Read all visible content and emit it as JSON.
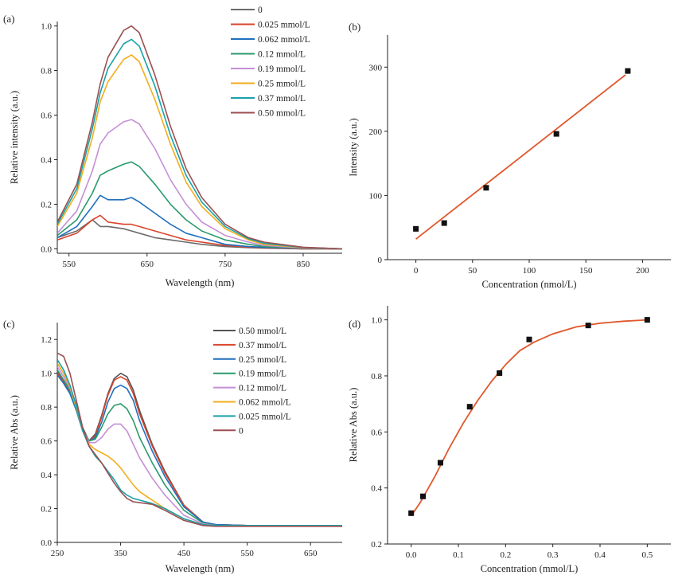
{
  "chart_data": [
    {
      "panel": "(a)",
      "type": "line",
      "title": "",
      "xlabel": "Wavelength (nm)",
      "ylabel": "Relative intensity (a.u.)",
      "xlim": [
        535,
        900
      ],
      "ylim": [
        -0.02,
        1.02
      ],
      "xticks": [
        550,
        650,
        750,
        850
      ],
      "yticks": [
        0.0,
        0.2,
        0.4,
        0.6,
        0.8,
        1.0
      ],
      "ytick_labels": [
        "0.0",
        "0.2",
        "0.4",
        "0.6",
        "0.8",
        "1.0"
      ],
      "legend_position": "top-right",
      "x": [
        535,
        560,
        580,
        590,
        600,
        620,
        630,
        640,
        660,
        680,
        700,
        720,
        750,
        780,
        800,
        850,
        900
      ],
      "series": [
        {
          "name": "0",
          "color": "#6b6b6b",
          "values": [
            0.05,
            0.08,
            0.13,
            0.1,
            0.1,
            0.09,
            0.08,
            0.07,
            0.05,
            0.04,
            0.03,
            0.02,
            0.01,
            0.005,
            0.003,
            0.0,
            0.0
          ]
        },
        {
          "name": "0.025 mmol/L",
          "color": "#d9452b",
          "values": [
            0.04,
            0.07,
            0.13,
            0.15,
            0.12,
            0.11,
            0.11,
            0.1,
            0.08,
            0.06,
            0.04,
            0.03,
            0.015,
            0.008,
            0.005,
            0.0,
            0.0
          ]
        },
        {
          "name": "0.062 mmol/L",
          "color": "#1f6fbf",
          "values": [
            0.05,
            0.1,
            0.19,
            0.24,
            0.22,
            0.22,
            0.23,
            0.21,
            0.16,
            0.11,
            0.07,
            0.05,
            0.02,
            0.01,
            0.007,
            0.002,
            0.0
          ]
        },
        {
          "name": "0.12 mmol/L",
          "color": "#2a9a6c",
          "values": [
            0.06,
            0.13,
            0.25,
            0.33,
            0.35,
            0.38,
            0.39,
            0.37,
            0.29,
            0.2,
            0.13,
            0.08,
            0.04,
            0.02,
            0.01,
            0.003,
            0.0
          ]
        },
        {
          "name": "0.19 mmol/L",
          "color": "#c58fd6",
          "values": [
            0.07,
            0.17,
            0.35,
            0.47,
            0.52,
            0.57,
            0.58,
            0.56,
            0.45,
            0.31,
            0.2,
            0.12,
            0.06,
            0.03,
            0.015,
            0.004,
            0.0
          ]
        },
        {
          "name": "0.25 mmol/L",
          "color": "#f2ad1b",
          "values": [
            0.1,
            0.25,
            0.5,
            0.66,
            0.75,
            0.85,
            0.87,
            0.84,
            0.67,
            0.47,
            0.3,
            0.19,
            0.09,
            0.04,
            0.02,
            0.005,
            0.0
          ]
        },
        {
          "name": "0.37 mmol/L",
          "color": "#19a2a8",
          "values": [
            0.11,
            0.27,
            0.54,
            0.7,
            0.81,
            0.92,
            0.94,
            0.91,
            0.73,
            0.51,
            0.33,
            0.21,
            0.1,
            0.045,
            0.025,
            0.006,
            0.0
          ]
        },
        {
          "name": "0.50 mmol/L",
          "color": "#9b4f52",
          "values": [
            0.12,
            0.29,
            0.57,
            0.74,
            0.86,
            0.98,
            1.0,
            0.97,
            0.78,
            0.55,
            0.36,
            0.23,
            0.11,
            0.05,
            0.03,
            0.007,
            0.0
          ]
        }
      ]
    },
    {
      "panel": "(b)",
      "type": "scatter",
      "title": "",
      "xlabel": "Concentration (nmol/L)",
      "ylabel": "Intensity (a.u.)",
      "xlim": [
        -25,
        225
      ],
      "ylim": [
        0,
        350
      ],
      "xticks": [
        0,
        50,
        100,
        150,
        200
      ],
      "yticks": [
        0,
        100,
        200,
        300
      ],
      "points": [
        {
          "x": 0,
          "y": 48
        },
        {
          "x": 25,
          "y": 57
        },
        {
          "x": 62,
          "y": 112
        },
        {
          "x": 124,
          "y": 196
        },
        {
          "x": 187,
          "y": 294
        }
      ],
      "fit": {
        "kind": "linear",
        "x": [
          0,
          185
        ],
        "y": [
          32,
          288
        ],
        "color": "#e0572b"
      }
    },
    {
      "panel": "(c)",
      "type": "line",
      "title": "",
      "xlabel": "Wavelength (nm)",
      "ylabel": "Relative Abs (a.u.)",
      "xlim": [
        250,
        700
      ],
      "ylim": [
        0.0,
        1.3
      ],
      "xticks": [
        250,
        350,
        450,
        550,
        650
      ],
      "yticks": [
        0.0,
        0.2,
        0.4,
        0.6,
        0.8,
        1.0,
        1.2
      ],
      "ytick_labels": [
        "0.0",
        "0.2",
        "0.4",
        "0.6",
        "0.8",
        "1.0",
        "1.2"
      ],
      "legend_position": "top-right",
      "x": [
        250,
        260,
        270,
        280,
        290,
        300,
        310,
        320,
        330,
        340,
        350,
        360,
        370,
        380,
        400,
        420,
        450,
        480,
        500,
        550,
        600,
        700
      ],
      "series": [
        {
          "name": "0.50 mmol/L",
          "color": "#555555",
          "values": [
            1.01,
            0.96,
            0.9,
            0.8,
            0.68,
            0.6,
            0.64,
            0.75,
            0.88,
            0.97,
            1.0,
            0.98,
            0.9,
            0.78,
            0.58,
            0.42,
            0.22,
            0.12,
            0.105,
            0.1,
            0.1,
            0.1
          ]
        },
        {
          "name": "0.37 mmol/L",
          "color": "#d9452b",
          "values": [
            1.0,
            0.95,
            0.89,
            0.79,
            0.67,
            0.6,
            0.63,
            0.74,
            0.87,
            0.96,
            0.98,
            0.96,
            0.88,
            0.76,
            0.57,
            0.41,
            0.22,
            0.12,
            0.105,
            0.1,
            0.1,
            0.1
          ]
        },
        {
          "name": "0.25 mmol/L",
          "color": "#1f6fbf",
          "values": [
            0.99,
            0.94,
            0.88,
            0.78,
            0.66,
            0.6,
            0.62,
            0.71,
            0.83,
            0.91,
            0.93,
            0.91,
            0.84,
            0.72,
            0.54,
            0.39,
            0.21,
            0.12,
            0.105,
            0.1,
            0.1,
            0.1
          ]
        },
        {
          "name": "0.19 mmol/L",
          "color": "#2a9a6c",
          "values": [
            1.02,
            0.96,
            0.9,
            0.79,
            0.67,
            0.6,
            0.61,
            0.68,
            0.76,
            0.81,
            0.82,
            0.79,
            0.72,
            0.62,
            0.47,
            0.34,
            0.19,
            0.115,
            0.1,
            0.1,
            0.1,
            0.1
          ]
        },
        {
          "name": "0.12 mmol/L",
          "color": "#c58fd6",
          "values": [
            1.04,
            0.98,
            0.91,
            0.8,
            0.67,
            0.59,
            0.59,
            0.62,
            0.67,
            0.7,
            0.7,
            0.66,
            0.58,
            0.5,
            0.38,
            0.28,
            0.16,
            0.11,
            0.1,
            0.1,
            0.1,
            0.1
          ]
        },
        {
          "name": "0.062 mmol/L",
          "color": "#f2ad1b",
          "values": [
            1.06,
            1.0,
            0.92,
            0.8,
            0.66,
            0.58,
            0.55,
            0.53,
            0.51,
            0.48,
            0.44,
            0.39,
            0.34,
            0.3,
            0.25,
            0.2,
            0.14,
            0.105,
            0.1,
            0.1,
            0.1,
            0.1
          ]
        },
        {
          "name": "0.025 mmol/L",
          "color": "#19a2a8",
          "values": [
            1.08,
            1.02,
            0.93,
            0.81,
            0.66,
            0.57,
            0.51,
            0.47,
            0.42,
            0.37,
            0.31,
            0.28,
            0.26,
            0.25,
            0.23,
            0.2,
            0.14,
            0.105,
            0.1,
            0.1,
            0.1,
            0.1
          ]
        },
        {
          "name": "0",
          "color": "#9b4f52",
          "values": [
            1.12,
            1.1,
            1.0,
            0.84,
            0.68,
            0.57,
            0.52,
            0.47,
            0.41,
            0.35,
            0.3,
            0.26,
            0.24,
            0.235,
            0.225,
            0.19,
            0.13,
            0.1,
            0.095,
            0.095,
            0.095,
            0.095
          ]
        }
      ]
    },
    {
      "panel": "(d)",
      "type": "scatter",
      "title": "",
      "xlabel": "Concentration (mmol/L)",
      "ylabel": "Relative Abs (a.u.)",
      "xlim": [
        -0.05,
        0.55
      ],
      "ylim": [
        0.2,
        1.05
      ],
      "xticks": [
        0.0,
        0.1,
        0.2,
        0.3,
        0.4,
        0.5
      ],
      "xtick_labels": [
        "0.0",
        "0.1",
        "0.2",
        "0.3",
        "0.4",
        "0.5"
      ],
      "yticks": [
        0.2,
        0.4,
        0.6,
        0.8,
        1.0
      ],
      "ytick_labels": [
        "0.2",
        "0.4",
        "0.6",
        "0.8",
        "1.0"
      ],
      "points": [
        {
          "x": 0.0,
          "y": 0.31
        },
        {
          "x": 0.025,
          "y": 0.37
        },
        {
          "x": 0.062,
          "y": 0.49
        },
        {
          "x": 0.124,
          "y": 0.69
        },
        {
          "x": 0.187,
          "y": 0.81
        },
        {
          "x": 0.25,
          "y": 0.93
        },
        {
          "x": 0.375,
          "y": 0.98
        },
        {
          "x": 0.5,
          "y": 1.0
        }
      ],
      "fit": {
        "kind": "sigmoid",
        "x": [
          0.0,
          0.02,
          0.05,
          0.08,
          0.11,
          0.14,
          0.17,
          0.2,
          0.23,
          0.26,
          0.3,
          0.35,
          0.4,
          0.45,
          0.5
        ],
        "y": [
          0.3,
          0.35,
          0.44,
          0.54,
          0.63,
          0.71,
          0.78,
          0.84,
          0.89,
          0.92,
          0.95,
          0.975,
          0.988,
          0.995,
          1.0
        ],
        "color": "#e0572b"
      }
    }
  ]
}
